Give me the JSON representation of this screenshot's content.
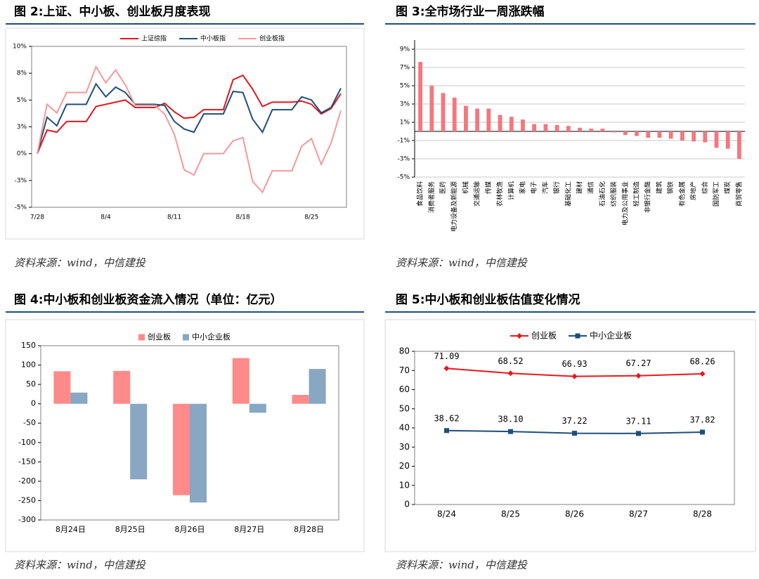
{
  "chart_data": [
    {
      "type": "line",
      "title": "图 2:上证、中小板、创业板月度表现",
      "note": "资料来源：wind，中信建投",
      "categories": [
        "7/28",
        null,
        null,
        null,
        null,
        null,
        null,
        "8/4",
        null,
        null,
        null,
        null,
        null,
        null,
        "8/11",
        null,
        null,
        null,
        null,
        null,
        null,
        "8/18",
        null,
        null,
        null,
        null,
        null,
        null,
        "8/25",
        null,
        null,
        null
      ],
      "ylim": [
        -5,
        10
      ],
      "yticks": [
        {
          "value": -5,
          "label": "-5%"
        },
        {
          "value": -2.5,
          "label": "-3%"
        },
        {
          "value": 0,
          "label": "0%"
        },
        {
          "value": 2.5,
          "label": "3%"
        },
        {
          "value": 5,
          "label": "5%"
        },
        {
          "value": 7.5,
          "label": "8%"
        },
        {
          "value": 10,
          "label": "10%"
        }
      ],
      "grid": false,
      "legend": "top",
      "series": [
        {
          "name": "上证综指",
          "color": "#e3161c",
          "values": [
            0,
            2.2,
            2.0,
            3.0,
            3.0,
            3.0,
            4.4,
            4.6,
            4.8,
            5.0,
            4.3,
            4.3,
            4.3,
            4.7,
            3.9,
            3.3,
            3.4,
            4.1,
            4.1,
            4.1,
            6.9,
            7.3,
            6.0,
            4.4,
            4.8,
            4.8,
            4.8,
            4.9,
            4.6,
            3.7,
            4.2,
            5.6
          ]
        },
        {
          "name": "中小板指",
          "color": "#1f4e79",
          "values": [
            0,
            3.4,
            2.6,
            4.6,
            4.6,
            4.6,
            6.5,
            5.3,
            6.2,
            5.7,
            4.6,
            4.6,
            4.6,
            4.5,
            3.0,
            2.3,
            2.0,
            3.7,
            3.7,
            3.7,
            5.8,
            5.7,
            3.2,
            2.0,
            4.1,
            4.1,
            4.1,
            5.3,
            5.0,
            3.8,
            4.3,
            6.1
          ]
        },
        {
          "name": "创业板指",
          "color": "#f4999b",
          "values": [
            0,
            4.6,
            3.8,
            5.7,
            5.7,
            5.7,
            8.1,
            6.6,
            7.8,
            6.4,
            4.5,
            4.5,
            4.5,
            3.7,
            1.8,
            -1.5,
            -2.0,
            0,
            0,
            0,
            1.2,
            1.5,
            -2.6,
            -3.6,
            -1.6,
            -1.6,
            -1.6,
            0.7,
            1.4,
            -1.0,
            1.0,
            4.0
          ]
        }
      ]
    },
    {
      "type": "bar",
      "title": "图 3:全市场行业一周涨跌幅",
      "note": "资料来源：wind，中信建投",
      "categories": [
        "食品饮料",
        "消费者服务",
        "医药",
        "电力设备及新能源",
        "机械",
        "交通运输",
        "传媒",
        "农林牧渔",
        "计算机",
        "家电",
        "电子",
        "汽车",
        "银行",
        "基础化工",
        "建材",
        "通信",
        "石油石化",
        "纺织服装",
        "电力及公用事业",
        "轻工制造",
        "非银行金融",
        "建筑",
        "钢铁",
        "有色金属",
        "房地产",
        "综合",
        "国防军工",
        "煤炭",
        "商贸零售"
      ],
      "values": [
        7.6,
        5.0,
        4.2,
        3.7,
        2.8,
        2.5,
        2.5,
        1.8,
        1.6,
        1.3,
        0.8,
        0.8,
        0.7,
        0.6,
        0.4,
        0.3,
        0.3,
        -0.1,
        -0.4,
        -0.5,
        -0.7,
        -0.7,
        -0.8,
        -1.0,
        -1.1,
        -1.2,
        -1.8,
        -1.9,
        -3.0
      ],
      "color": "#f4777f",
      "ylim": [
        -5,
        10
      ],
      "yticks": [
        {
          "value": -5,
          "label": "-5%"
        },
        {
          "value": -3,
          "label": "-3%"
        },
        {
          "value": -1,
          "label": "-1%"
        },
        {
          "value": 1,
          "label": "1%"
        },
        {
          "value": 3,
          "label": "3%"
        },
        {
          "value": 5,
          "label": "5%"
        },
        {
          "value": 7,
          "label": "7%"
        },
        {
          "value": 9,
          "label": "9%"
        }
      ],
      "grid": true
    },
    {
      "type": "bar",
      "title": "图 4:中小板和创业板资金流入情况（单位：亿元）",
      "note": "资料来源：wind，中信建投",
      "categories": [
        "8月24日",
        "8月25日",
        "8月26日",
        "8月27日",
        "8月28日"
      ],
      "ylim": [
        -300,
        150
      ],
      "yticks": [
        -300,
        -250,
        -200,
        -150,
        -100,
        -50,
        0,
        50,
        100,
        150
      ],
      "grid": false,
      "legend": "top",
      "series": [
        {
          "name": "创业板",
          "color": "#ff8a8a",
          "values": [
            84,
            85,
            -236,
            118,
            23
          ]
        },
        {
          "name": "中小企业板",
          "color": "#87a7c3",
          "values": [
            29,
            -195,
            -255,
            -23,
            90
          ]
        }
      ]
    },
    {
      "type": "line",
      "title": "图 5:中小板和创业板估值变化情况",
      "note": "资料来源：wind，中信建投",
      "categories": [
        "8/24",
        "8/25",
        "8/26",
        "8/27",
        "8/28"
      ],
      "ylim": [
        0,
        80
      ],
      "yticks": [
        0,
        10,
        20,
        30,
        40,
        50,
        60,
        70,
        80
      ],
      "grid": false,
      "legend": "top",
      "series": [
        {
          "name": "创业板",
          "color": "#e8161c",
          "marker": "diamond",
          "values": [
            71.09,
            68.52,
            66.93,
            67.27,
            68.26
          ],
          "value_labels": [
            "71.09",
            "68.52",
            "66.93",
            "67.27",
            "68.26"
          ]
        },
        {
          "name": "中小企业板",
          "color": "#1f4e79",
          "marker": "square",
          "values": [
            38.62,
            38.1,
            37.22,
            37.11,
            37.82
          ],
          "value_labels": [
            "38.62",
            "38.10",
            "37.22",
            "37.11",
            "37.82"
          ]
        }
      ]
    }
  ]
}
